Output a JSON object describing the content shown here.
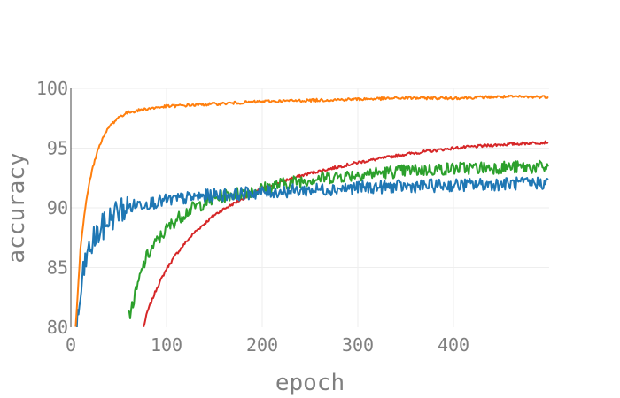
{
  "chart_data": {
    "type": "line",
    "xlabel": "epoch",
    "ylabel": "accuracy",
    "xlim": [
      0,
      500
    ],
    "ylim": [
      80,
      100
    ],
    "x_ticks": [
      0,
      100,
      200,
      300,
      400
    ],
    "y_ticks": [
      80,
      85,
      90,
      95,
      100
    ],
    "x_tick_labels": [
      "0",
      "100",
      "200",
      "300",
      "400"
    ],
    "y_tick_labels": [
      "80",
      "85",
      "90",
      "95",
      "100"
    ],
    "grid": true,
    "x_range_of_series": [
      0,
      499
    ],
    "series": [
      {
        "color": "#ff7f0e",
        "x": [
          5,
          10,
          15,
          20,
          25,
          30,
          40,
          50,
          60,
          80,
          100,
          150,
          200,
          250,
          300,
          350,
          400,
          450,
          499
        ],
        "y": [
          80.0,
          86.5,
          90.0,
          92.4,
          94.0,
          95.3,
          96.8,
          97.6,
          98.0,
          98.3,
          98.5,
          98.7,
          98.9,
          99.0,
          99.1,
          99.2,
          99.2,
          99.3,
          99.3
        ]
      },
      {
        "color": "#1f77b4",
        "x": [
          6,
          8,
          10,
          15,
          20,
          25,
          30,
          35,
          40,
          50,
          60,
          70,
          80,
          90,
          100,
          120,
          140,
          160,
          180,
          200,
          250,
          300,
          350,
          400,
          450,
          499
        ],
        "y": [
          80.0,
          81.0,
          82.5,
          85.5,
          86.5,
          87.5,
          88.0,
          88.5,
          89.0,
          89.8,
          90.0,
          90.3,
          90.4,
          90.5,
          90.6,
          90.8,
          91.0,
          91.1,
          91.2,
          91.3,
          91.5,
          91.7,
          91.8,
          91.9,
          92.0,
          92.1
        ]
      },
      {
        "color": "#2ca02c",
        "x": [
          60,
          65,
          70,
          75,
          80,
          90,
          100,
          110,
          120,
          130,
          140,
          150,
          160,
          180,
          200,
          220,
          250,
          300,
          350,
          400,
          450,
          499
        ],
        "y": [
          80.8,
          82.0,
          83.5,
          85.0,
          86.0,
          87.2,
          88.2,
          89.0,
          89.6,
          90.1,
          90.4,
          90.7,
          91.0,
          91.3,
          91.6,
          92.0,
          92.4,
          92.8,
          93.1,
          93.3,
          93.4,
          93.4
        ]
      },
      {
        "color": "#d62728",
        "x": [
          76,
          80,
          90,
          100,
          110,
          120,
          130,
          140,
          150,
          160,
          180,
          200,
          220,
          250,
          300,
          350,
          400,
          450,
          499
        ],
        "y": [
          80.0,
          81.3,
          83.3,
          84.9,
          86.1,
          87.1,
          88.0,
          88.7,
          89.4,
          89.9,
          90.8,
          91.6,
          92.2,
          92.9,
          93.8,
          94.5,
          95.0,
          95.3,
          95.5
        ]
      }
    ]
  }
}
